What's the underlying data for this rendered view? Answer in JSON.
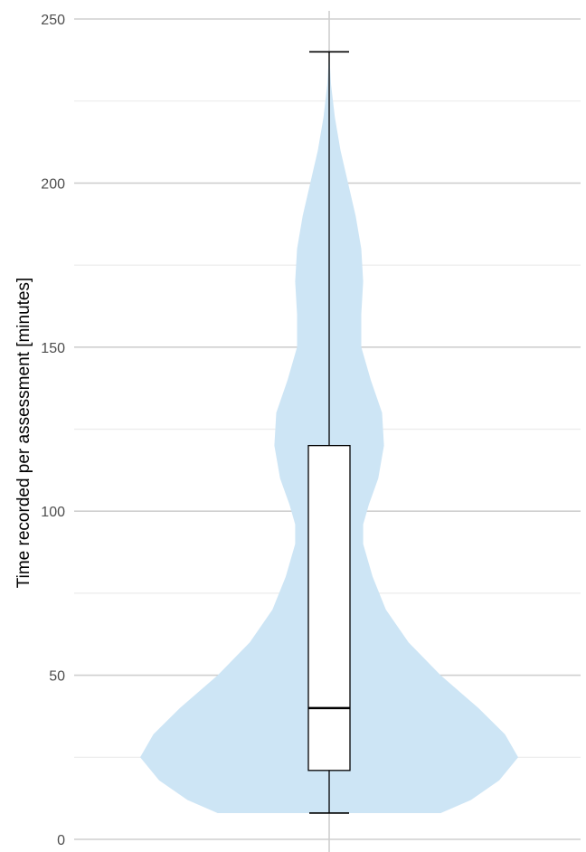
{
  "chart_data": {
    "type": "violin",
    "title": "",
    "xlabel": "",
    "ylabel": "Time recorded per assessment [minutes]",
    "ylim": [
      0,
      250
    ],
    "y_ticks": [
      0,
      50,
      100,
      150,
      200,
      250
    ],
    "y_tick_labels": [
      "0",
      "50",
      "100",
      "150",
      "200",
      "250"
    ],
    "grid": true,
    "legend": "none",
    "violin": {
      "fill_color": "#cde5f5",
      "density_profile": [
        {
          "y": 8,
          "half_width": 0.59
        },
        {
          "y": 12,
          "half_width": 0.75
        },
        {
          "y": 18,
          "half_width": 0.9
        },
        {
          "y": 25,
          "half_width": 1.0
        },
        {
          "y": 32,
          "half_width": 0.93
        },
        {
          "y": 40,
          "half_width": 0.79
        },
        {
          "y": 50,
          "half_width": 0.59
        },
        {
          "y": 60,
          "half_width": 0.42
        },
        {
          "y": 70,
          "half_width": 0.3
        },
        {
          "y": 80,
          "half_width": 0.23
        },
        {
          "y": 90,
          "half_width": 0.18
        },
        {
          "y": 96,
          "half_width": 0.18
        },
        {
          "y": 102,
          "half_width": 0.21
        },
        {
          "y": 110,
          "half_width": 0.26
        },
        {
          "y": 120,
          "half_width": 0.29
        },
        {
          "y": 130,
          "half_width": 0.28
        },
        {
          "y": 140,
          "half_width": 0.22
        },
        {
          "y": 150,
          "half_width": 0.17
        },
        {
          "y": 160,
          "half_width": 0.17
        },
        {
          "y": 170,
          "half_width": 0.18
        },
        {
          "y": 180,
          "half_width": 0.17
        },
        {
          "y": 190,
          "half_width": 0.14
        },
        {
          "y": 200,
          "half_width": 0.1
        },
        {
          "y": 210,
          "half_width": 0.06
        },
        {
          "y": 220,
          "half_width": 0.03
        },
        {
          "y": 230,
          "half_width": 0.01
        },
        {
          "y": 240,
          "half_width": 0.0
        }
      ]
    },
    "boxplot": {
      "min": 8,
      "q1": 21,
      "median": 40,
      "q3": 120,
      "max": 240,
      "box_color": "#ffffff",
      "line_color": "#000000"
    },
    "colors": {
      "grid_major": "#cfcfcf",
      "grid_minor": "#ececec",
      "tick_text": "#4d4d4d"
    }
  }
}
